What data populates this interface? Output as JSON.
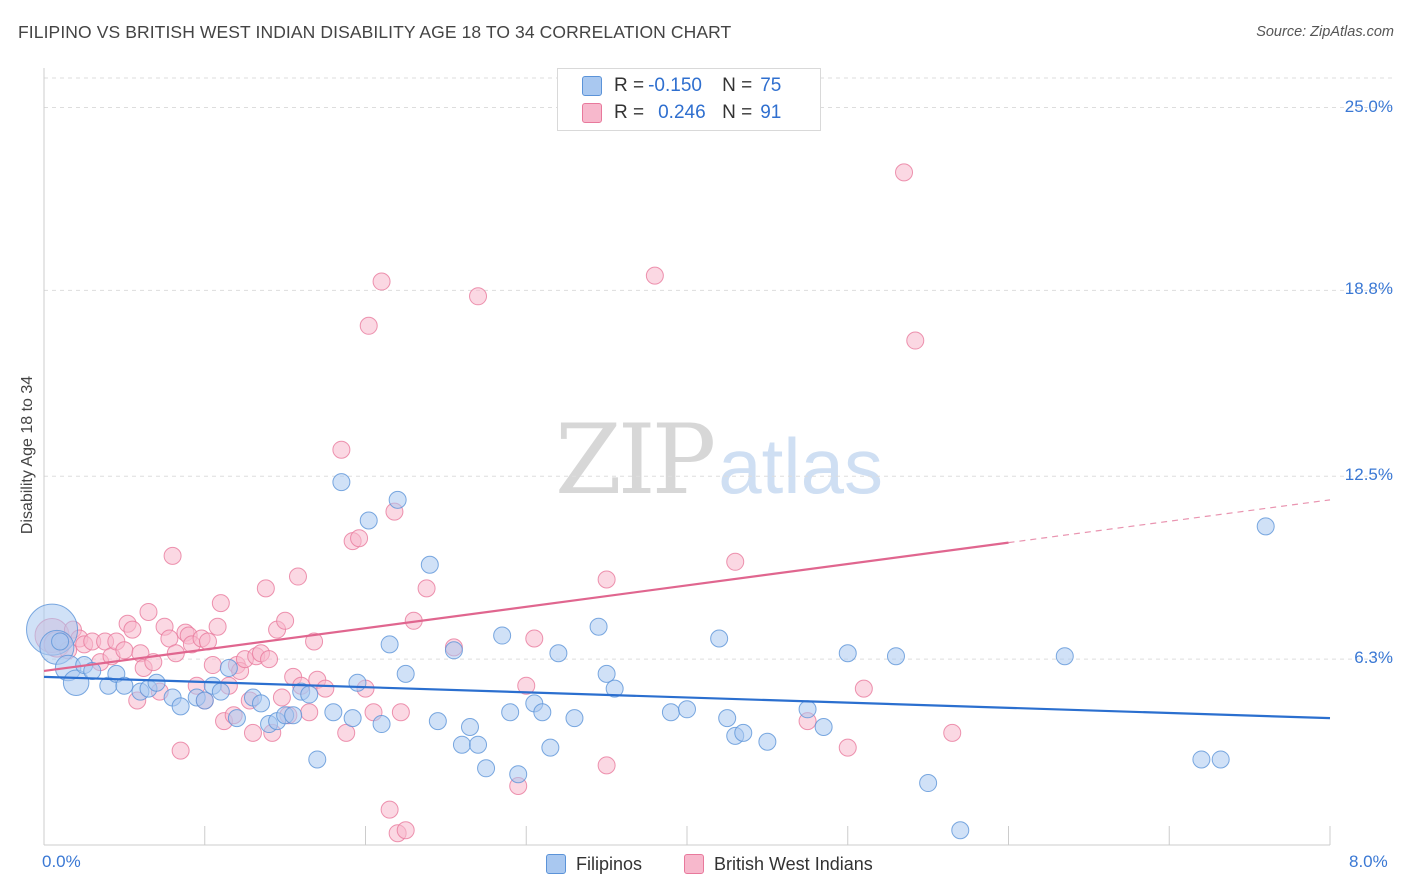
{
  "header": {
    "title": "FILIPINO VS BRITISH WEST INDIAN DISABILITY AGE 18 TO 34 CORRELATION CHART",
    "source": "Source: ZipAtlas.com"
  },
  "watermark": {
    "zip": "ZIP",
    "atlas": "atlas"
  },
  "legend": {
    "filipinos": {
      "r_label": "R =",
      "r_value": "-0.150",
      "n_label": "N =",
      "n_value": "75"
    },
    "bwi": {
      "r_label": "R =",
      "r_value": "0.246",
      "n_label": "N =",
      "n_value": "91"
    },
    "bottom": {
      "filipinos": "Filipinos",
      "bwi": "British West Indians"
    }
  },
  "colors": {
    "blue_fill": "#a9c8f0",
    "blue_stroke": "#5b93d8",
    "blue_line": "#2b6fcf",
    "pink_fill": "#f7b8cc",
    "pink_stroke": "#e8799c",
    "pink_line": "#e0668f",
    "axis_text": "#3a78d4",
    "grid": "#dddddd"
  },
  "chart_data": {
    "type": "scatter",
    "title": "FILIPINO VS BRITISH WEST INDIAN DISABILITY AGE 18 TO 34 CORRELATION CHART",
    "xlabel": "",
    "ylabel": "Disability Age 18 to 34",
    "xlim": [
      0,
      8
    ],
    "ylim": [
      0,
      26
    ],
    "x_tick_labels": [
      "0.0%",
      "8.0%"
    ],
    "y_ticks": [
      6.3,
      12.5,
      18.8,
      25.0
    ],
    "y_tick_labels": [
      "6.3%",
      "12.5%",
      "18.8%",
      "25.0%"
    ],
    "grid": "horizontal dashed",
    "legend_placement": "top-center",
    "series": [
      {
        "name": "Filipinos",
        "color": "#a9c8f0",
        "trend": {
          "x": [
            0.0,
            8.0
          ],
          "y": [
            5.7,
            4.3
          ],
          "dashed_from_x": null
        },
        "points": [
          [
            0.05,
            7.3,
            3
          ],
          [
            0.08,
            6.7,
            2
          ],
          [
            0.1,
            6.9,
            1
          ],
          [
            0.15,
            6.0,
            1.5
          ],
          [
            0.2,
            5.5,
            1.5
          ],
          [
            0.25,
            6.1,
            1
          ],
          [
            0.3,
            5.9,
            1
          ],
          [
            0.4,
            5.4,
            1
          ],
          [
            0.45,
            5.8,
            1
          ],
          [
            0.5,
            5.4,
            1
          ],
          [
            0.6,
            5.2,
            1
          ],
          [
            0.65,
            5.3,
            1
          ],
          [
            0.7,
            5.5,
            1
          ],
          [
            0.8,
            5.0,
            1
          ],
          [
            0.85,
            4.7,
            1
          ],
          [
            0.95,
            5.0,
            1
          ],
          [
            1.0,
            4.9,
            1
          ],
          [
            1.05,
            5.4,
            1
          ],
          [
            1.1,
            5.2,
            1
          ],
          [
            1.15,
            6.0,
            1
          ],
          [
            1.2,
            4.3,
            1
          ],
          [
            1.3,
            5.0,
            1
          ],
          [
            1.35,
            4.8,
            1
          ],
          [
            1.4,
            4.1,
            1
          ],
          [
            1.45,
            4.2,
            1
          ],
          [
            1.5,
            4.4,
            1
          ],
          [
            1.55,
            4.4,
            1
          ],
          [
            1.6,
            5.2,
            1
          ],
          [
            1.65,
            5.1,
            1
          ],
          [
            1.7,
            2.9,
            1
          ],
          [
            1.8,
            4.5,
            1
          ],
          [
            1.85,
            12.3,
            1
          ],
          [
            1.92,
            4.3,
            1
          ],
          [
            1.95,
            5.5,
            1
          ],
          [
            2.02,
            11.0,
            1
          ],
          [
            2.1,
            4.1,
            1
          ],
          [
            2.15,
            6.8,
            1
          ],
          [
            2.2,
            11.7,
            1
          ],
          [
            2.25,
            5.8,
            1
          ],
          [
            2.4,
            9.5,
            1
          ],
          [
            2.45,
            4.2,
            1
          ],
          [
            2.55,
            6.6,
            1
          ],
          [
            2.6,
            3.4,
            1
          ],
          [
            2.65,
            4.0,
            1
          ],
          [
            2.7,
            3.4,
            1
          ],
          [
            2.75,
            2.6,
            1
          ],
          [
            2.85,
            7.1,
            1
          ],
          [
            2.9,
            4.5,
            1
          ],
          [
            2.95,
            2.4,
            1
          ],
          [
            3.05,
            4.8,
            1
          ],
          [
            3.1,
            4.5,
            1
          ],
          [
            3.15,
            3.3,
            1
          ],
          [
            3.2,
            6.5,
            1
          ],
          [
            3.3,
            4.3,
            1
          ],
          [
            3.45,
            7.4,
            1
          ],
          [
            3.5,
            5.8,
            1
          ],
          [
            3.55,
            5.3,
            1
          ],
          [
            3.9,
            4.5,
            1
          ],
          [
            4.0,
            4.6,
            1
          ],
          [
            4.2,
            7.0,
            1
          ],
          [
            4.25,
            4.3,
            1
          ],
          [
            4.3,
            3.7,
            1
          ],
          [
            4.35,
            3.8,
            1
          ],
          [
            4.5,
            3.5,
            1
          ],
          [
            4.75,
            4.6,
            1
          ],
          [
            4.85,
            4.0,
            1
          ],
          [
            5.0,
            6.5,
            1
          ],
          [
            5.3,
            6.4,
            1
          ],
          [
            5.5,
            2.1,
            1
          ],
          [
            5.7,
            0.5,
            1
          ],
          [
            6.35,
            6.4,
            1
          ],
          [
            7.2,
            2.9,
            1
          ],
          [
            7.32,
            2.9,
            1
          ],
          [
            7.6,
            10.8,
            1
          ]
        ]
      },
      {
        "name": "British West Indians",
        "color": "#f7b8cc",
        "trend": {
          "x": [
            0.0,
            8.0
          ],
          "y": [
            5.9,
            11.7
          ],
          "dashed_from_x": 6.0
        },
        "points": [
          [
            0.05,
            7.1,
            2
          ],
          [
            0.08,
            6.8,
            1.5
          ],
          [
            0.12,
            6.9,
            1
          ],
          [
            0.15,
            6.6,
            1
          ],
          [
            0.18,
            7.3,
            1
          ],
          [
            0.22,
            7.0,
            1
          ],
          [
            0.25,
            6.8,
            1
          ],
          [
            0.3,
            6.9,
            1
          ],
          [
            0.35,
            6.2,
            1
          ],
          [
            0.38,
            6.9,
            1
          ],
          [
            0.42,
            6.4,
            1
          ],
          [
            0.45,
            6.9,
            1
          ],
          [
            0.5,
            6.6,
            1
          ],
          [
            0.52,
            7.5,
            1
          ],
          [
            0.55,
            7.3,
            1
          ],
          [
            0.58,
            4.9,
            1
          ],
          [
            0.6,
            6.5,
            1
          ],
          [
            0.62,
            6.0,
            1
          ],
          [
            0.65,
            7.9,
            1
          ],
          [
            0.68,
            6.2,
            1
          ],
          [
            0.72,
            5.2,
            1
          ],
          [
            0.75,
            7.4,
            1
          ],
          [
            0.78,
            7.0,
            1
          ],
          [
            0.8,
            9.8,
            1
          ],
          [
            0.82,
            6.5,
            1
          ],
          [
            0.85,
            3.2,
            1
          ],
          [
            0.88,
            7.2,
            1
          ],
          [
            0.9,
            7.1,
            1
          ],
          [
            0.92,
            6.8,
            1
          ],
          [
            0.95,
            5.4,
            1
          ],
          [
            0.98,
            7.0,
            1
          ],
          [
            1.0,
            4.9,
            1
          ],
          [
            1.02,
            6.9,
            1
          ],
          [
            1.05,
            6.1,
            1
          ],
          [
            1.08,
            7.4,
            1
          ],
          [
            1.1,
            8.2,
            1
          ],
          [
            1.12,
            4.2,
            1
          ],
          [
            1.15,
            5.4,
            1
          ],
          [
            1.18,
            4.4,
            1
          ],
          [
            1.2,
            6.1,
            1
          ],
          [
            1.22,
            5.9,
            1
          ],
          [
            1.25,
            6.3,
            1
          ],
          [
            1.28,
            4.9,
            1
          ],
          [
            1.3,
            3.8,
            1
          ],
          [
            1.32,
            6.4,
            1
          ],
          [
            1.35,
            6.5,
            1
          ],
          [
            1.38,
            8.7,
            1
          ],
          [
            1.4,
            6.3,
            1
          ],
          [
            1.42,
            3.8,
            1
          ],
          [
            1.45,
            7.3,
            1
          ],
          [
            1.48,
            5.0,
            1
          ],
          [
            1.5,
            7.6,
            1
          ],
          [
            1.52,
            4.4,
            1
          ],
          [
            1.55,
            5.7,
            1
          ],
          [
            1.58,
            9.1,
            1
          ],
          [
            1.6,
            5.4,
            1
          ],
          [
            1.65,
            4.5,
            1
          ],
          [
            1.68,
            6.9,
            1
          ],
          [
            1.7,
            5.6,
            1
          ],
          [
            1.75,
            5.3,
            1
          ],
          [
            1.85,
            13.4,
            1
          ],
          [
            1.88,
            3.8,
            1
          ],
          [
            1.92,
            10.3,
            1
          ],
          [
            1.96,
            10.4,
            1
          ],
          [
            2.0,
            5.3,
            1
          ],
          [
            2.02,
            17.6,
            1
          ],
          [
            2.05,
            4.5,
            1
          ],
          [
            2.1,
            19.1,
            1
          ],
          [
            2.15,
            1.2,
            1
          ],
          [
            2.18,
            11.3,
            1
          ],
          [
            2.2,
            0.4,
            1
          ],
          [
            2.22,
            4.5,
            1
          ],
          [
            2.25,
            0.5,
            1
          ],
          [
            2.3,
            7.6,
            1
          ],
          [
            2.38,
            8.7,
            1
          ],
          [
            2.55,
            6.7,
            1
          ],
          [
            2.7,
            18.6,
            1
          ],
          [
            2.95,
            2.0,
            1
          ],
          [
            3.0,
            5.4,
            1
          ],
          [
            3.05,
            7.0,
            1
          ],
          [
            3.5,
            9.0,
            1
          ],
          [
            3.5,
            2.7,
            1
          ],
          [
            3.8,
            19.3,
            1
          ],
          [
            4.3,
            9.6,
            1
          ],
          [
            4.75,
            4.2,
            1
          ],
          [
            5.0,
            3.3,
            1
          ],
          [
            5.1,
            5.3,
            1
          ],
          [
            5.35,
            22.8,
            1
          ],
          [
            5.42,
            17.1,
            1
          ],
          [
            5.65,
            3.8,
            1
          ]
        ]
      }
    ]
  }
}
